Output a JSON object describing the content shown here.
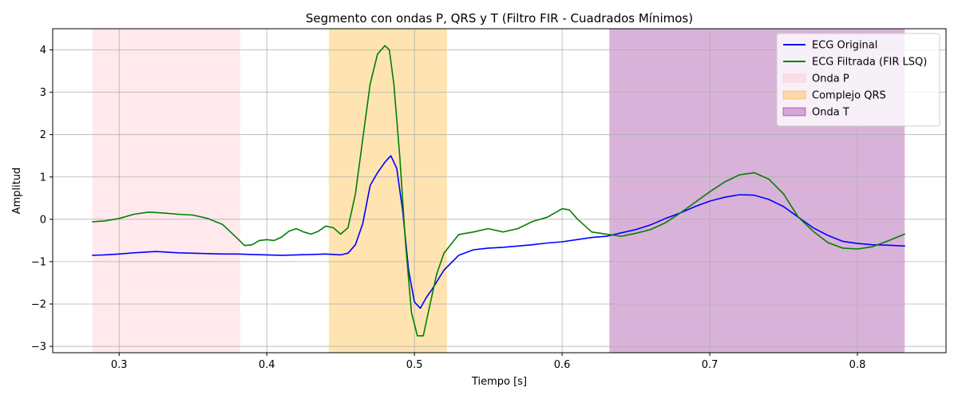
{
  "chart_data": {
    "type": "line",
    "title": "Segmento con ondas P, QRS y T (Filtro FIR - Cuadrados Mínimos)",
    "xlabel": "Tiempo [s]",
    "ylabel": "Amplitud",
    "xlim": [
      0.255,
      0.86
    ],
    "ylim": [
      -3.15,
      4.5
    ],
    "xticks": [
      0.3,
      0.4,
      0.5,
      0.6,
      0.7,
      0.8
    ],
    "xtick_labels": [
      "0.3",
      "0.4",
      "0.5",
      "0.6",
      "0.7",
      "0.8"
    ],
    "yticks": [
      -3,
      -2,
      -1,
      0,
      1,
      2,
      3,
      4
    ],
    "ytick_labels": [
      "−3",
      "−2",
      "−1",
      "0",
      "1",
      "2",
      "3",
      "4"
    ],
    "grid": true,
    "legend_position": "top-right",
    "regions": [
      {
        "name": "Onda P",
        "x0": 0.282,
        "x1": 0.382,
        "color": "#ffc0cb",
        "opacity": 0.35
      },
      {
        "name": "Complejo QRS",
        "x0": 0.442,
        "x1": 0.522,
        "color": "#ffa500",
        "opacity": 0.3
      },
      {
        "name": "Onda T",
        "x0": 0.632,
        "x1": 0.832,
        "color": "#800080",
        "opacity": 0.3
      }
    ],
    "series": [
      {
        "name": "ECG Original",
        "color": "#0000ff",
        "x": [
          0.282,
          0.29,
          0.3,
          0.31,
          0.32,
          0.325,
          0.33,
          0.34,
          0.35,
          0.36,
          0.37,
          0.38,
          0.39,
          0.4,
          0.41,
          0.42,
          0.43,
          0.44,
          0.45,
          0.455,
          0.46,
          0.465,
          0.47,
          0.475,
          0.48,
          0.484,
          0.488,
          0.492,
          0.496,
          0.5,
          0.504,
          0.508,
          0.512,
          0.52,
          0.53,
          0.54,
          0.55,
          0.56,
          0.57,
          0.58,
          0.59,
          0.6,
          0.61,
          0.62,
          0.63,
          0.64,
          0.65,
          0.66,
          0.67,
          0.68,
          0.69,
          0.7,
          0.71,
          0.72,
          0.73,
          0.74,
          0.75,
          0.76,
          0.77,
          0.78,
          0.79,
          0.8,
          0.81,
          0.82,
          0.832
        ],
        "y": [
          -0.85,
          -0.84,
          -0.82,
          -0.79,
          -0.77,
          -0.76,
          -0.77,
          -0.79,
          -0.8,
          -0.81,
          -0.82,
          -0.82,
          -0.83,
          -0.84,
          -0.85,
          -0.84,
          -0.83,
          -0.82,
          -0.84,
          -0.8,
          -0.6,
          -0.1,
          0.8,
          1.1,
          1.35,
          1.5,
          1.2,
          0.2,
          -1.2,
          -1.95,
          -2.1,
          -1.85,
          -1.65,
          -1.2,
          -0.85,
          -0.72,
          -0.68,
          -0.66,
          -0.63,
          -0.6,
          -0.56,
          -0.53,
          -0.48,
          -0.43,
          -0.4,
          -0.32,
          -0.24,
          -0.13,
          0.02,
          0.15,
          0.3,
          0.43,
          0.52,
          0.58,
          0.57,
          0.47,
          0.3,
          0.05,
          -0.2,
          -0.38,
          -0.52,
          -0.57,
          -0.6,
          -0.61,
          -0.63
        ]
      },
      {
        "name": "ECG Filtrada (FIR LSQ)",
        "color": "#008000",
        "x": [
          0.282,
          0.29,
          0.3,
          0.31,
          0.32,
          0.33,
          0.34,
          0.35,
          0.36,
          0.37,
          0.38,
          0.385,
          0.39,
          0.395,
          0.4,
          0.405,
          0.41,
          0.415,
          0.42,
          0.425,
          0.43,
          0.435,
          0.44,
          0.445,
          0.45,
          0.455,
          0.46,
          0.465,
          0.47,
          0.475,
          0.48,
          0.483,
          0.486,
          0.49,
          0.494,
          0.498,
          0.502,
          0.506,
          0.51,
          0.515,
          0.52,
          0.53,
          0.54,
          0.55,
          0.56,
          0.57,
          0.58,
          0.59,
          0.6,
          0.605,
          0.61,
          0.62,
          0.63,
          0.64,
          0.65,
          0.66,
          0.67,
          0.68,
          0.69,
          0.7,
          0.71,
          0.72,
          0.73,
          0.74,
          0.75,
          0.76,
          0.77,
          0.78,
          0.79,
          0.8,
          0.81,
          0.82,
          0.832
        ],
        "y": [
          -0.06,
          -0.04,
          0.02,
          0.12,
          0.17,
          0.15,
          0.12,
          0.1,
          0.02,
          -0.12,
          -0.45,
          -0.62,
          -0.6,
          -0.5,
          -0.48,
          -0.5,
          -0.42,
          -0.28,
          -0.22,
          -0.3,
          -0.35,
          -0.28,
          -0.16,
          -0.2,
          -0.35,
          -0.2,
          0.6,
          1.9,
          3.2,
          3.9,
          4.1,
          4.0,
          3.2,
          1.5,
          -0.6,
          -2.2,
          -2.75,
          -2.75,
          -2.1,
          -1.3,
          -0.8,
          -0.36,
          -0.3,
          -0.22,
          -0.3,
          -0.22,
          -0.05,
          0.05,
          0.25,
          0.22,
          0.02,
          -0.3,
          -0.35,
          -0.4,
          -0.33,
          -0.24,
          -0.08,
          0.15,
          0.4,
          0.65,
          0.88,
          1.05,
          1.1,
          0.95,
          0.6,
          0.05,
          -0.28,
          -0.55,
          -0.68,
          -0.7,
          -0.65,
          -0.52,
          -0.35
        ]
      }
    ]
  }
}
